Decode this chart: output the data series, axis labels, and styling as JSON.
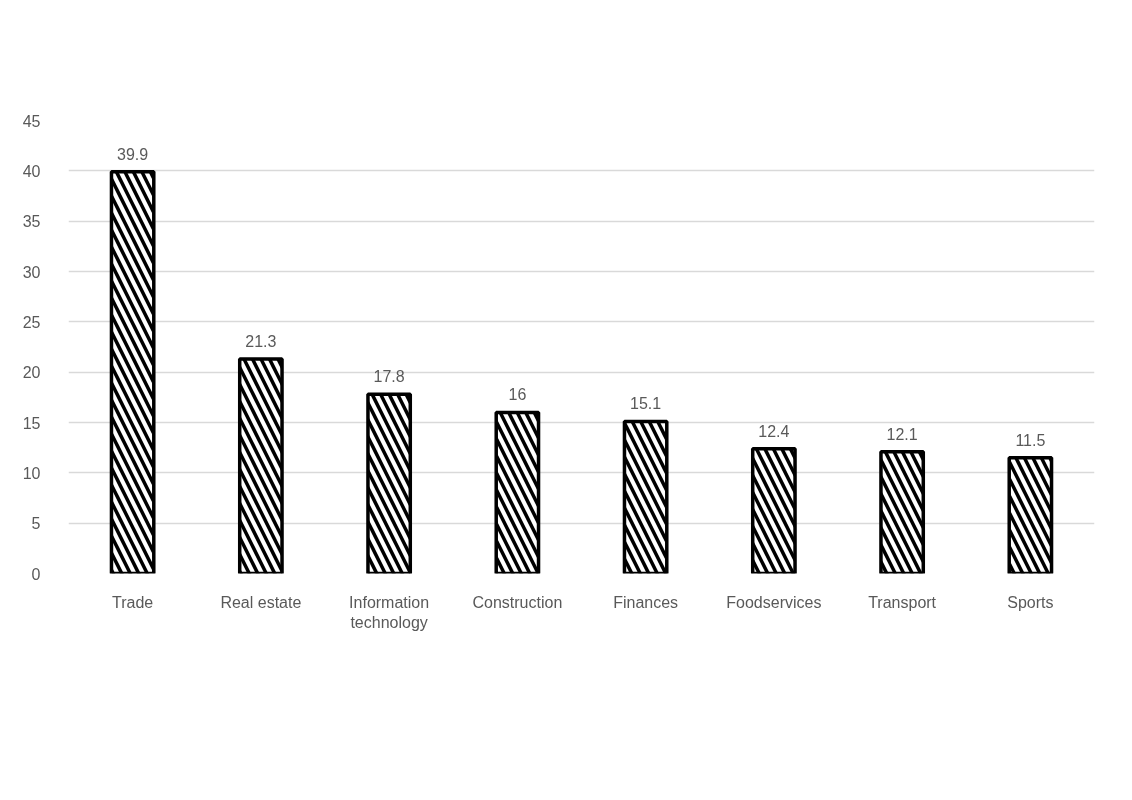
{
  "chart_data": {
    "type": "bar",
    "categories": [
      "Trade",
      "Real estate",
      "Information technology",
      "Construction",
      "Finances",
      "Foodservices",
      "Transport",
      "Sports"
    ],
    "values": [
      39.9,
      21.3,
      17.8,
      16,
      15.1,
      12.4,
      12.1,
      11.5
    ],
    "color": "#000000",
    "ylim": [
      0,
      45
    ],
    "yticks": [
      0,
      5,
      10,
      15,
      20,
      25,
      30,
      35,
      40,
      45
    ],
    "grid": "y",
    "data_labels": true
  }
}
